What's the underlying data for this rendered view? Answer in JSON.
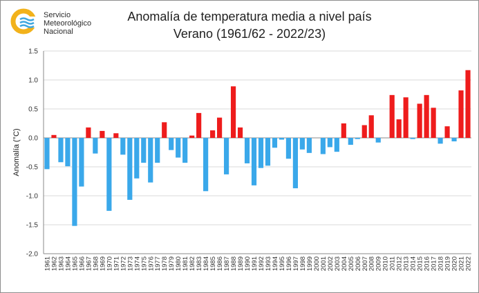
{
  "logo": {
    "lines": [
      "Servicio",
      "Meteorológico",
      "Nacional"
    ],
    "colors": {
      "yellow": "#f2b21b",
      "blue": "#3fa7df"
    }
  },
  "chart_data": {
    "type": "bar",
    "title": "Anomalía de temperatura media a nivel país",
    "subtitle": "Verano (1961/62 - 2022/23)",
    "xlabel": "",
    "ylabel": "Anomalía (°C)",
    "ylim": [
      -2.0,
      1.5
    ],
    "yticks": [
      "1.5",
      "1.0",
      "0.5",
      "0.0",
      "-0.5",
      "-1.0",
      "-1.5",
      "-2.0"
    ],
    "grid": true,
    "colors": {
      "positive": "#ee1c1c",
      "negative": "#3aa8ea",
      "grid": "#d9d9d9"
    },
    "categories": [
      "1961",
      "1962",
      "1963",
      "1964",
      "1965",
      "1966",
      "1967",
      "1968",
      "1969",
      "1970",
      "1971",
      "1972",
      "1973",
      "1974",
      "1975",
      "1976",
      "1977",
      "1978",
      "1979",
      "1980",
      "1981",
      "1982",
      "1983",
      "1984",
      "1985",
      "1986",
      "1987",
      "1988",
      "1989",
      "1990",
      "1991",
      "1992",
      "1993",
      "1994",
      "1995",
      "1996",
      "1997",
      "1998",
      "1999",
      "2000",
      "2001",
      "2002",
      "2003",
      "2004",
      "2005",
      "2006",
      "2007",
      "2008",
      "2009",
      "2010",
      "2011",
      "2012",
      "2013",
      "2014",
      "2015",
      "2016",
      "2017",
      "2018",
      "2019",
      "2020",
      "2021",
      "2022"
    ],
    "values": [
      -0.54,
      0.05,
      -0.42,
      -0.49,
      -1.52,
      -0.84,
      0.18,
      -0.27,
      0.12,
      -1.26,
      0.08,
      -0.29,
      -1.07,
      -0.7,
      -0.43,
      -0.77,
      -0.43,
      0.27,
      -0.21,
      -0.34,
      -0.43,
      0.04,
      0.43,
      -0.92,
      0.13,
      0.35,
      -0.63,
      0.89,
      0.18,
      -0.44,
      -0.82,
      -0.52,
      -0.48,
      -0.17,
      -0.03,
      -0.36,
      -0.87,
      -0.2,
      -0.26,
      0.0,
      -0.28,
      -0.16,
      -0.24,
      0.25,
      -0.12,
      -0.02,
      0.22,
      0.39,
      -0.08,
      0.0,
      0.74,
      0.32,
      0.7,
      -0.02,
      0.59,
      0.74,
      0.52,
      -0.1,
      0.2,
      -0.06,
      0.82,
      1.17
    ]
  }
}
